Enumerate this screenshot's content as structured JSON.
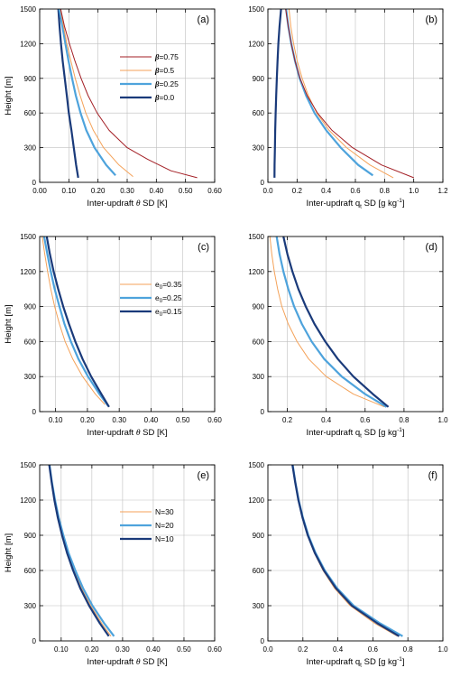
{
  "colors": {
    "orange": "#f4a259",
    "darkred": "#a31f25",
    "lightblue": "#4ea3dc",
    "darkblue": "#1a3a7a",
    "grid": "#bfbfbf"
  },
  "chart_data": [
    {
      "type": "line",
      "panel": "(a)",
      "xlabel_pre": "Inter-updraft",
      "xlabel_sym": "θ",
      "xlabel_post": "SD [K]",
      "ylabel": "Height [m]",
      "xlim": [
        0.0,
        0.6
      ],
      "ylim": [
        0,
        1500
      ],
      "xticks": [
        "0.00",
        "0.10",
        "0.20",
        "0.30",
        "0.40",
        "0.50",
        "0.60"
      ],
      "yticks": [
        "0",
        "300",
        "600",
        "900",
        "1200",
        "1500"
      ],
      "grid": true,
      "legend": [
        {
          "sym": "β",
          "rest": "=0.75",
          "color": "darkred",
          "width": 1
        },
        {
          "sym": "β",
          "rest": "=0.5",
          "color": "orange",
          "width": 1
        },
        {
          "sym": "β",
          "rest": "=0.25",
          "color": "lightblue",
          "width": 2
        },
        {
          "sym": "β",
          "rest": "=0.0",
          "color": "darkblue",
          "width": 2
        }
      ],
      "series": [
        {
          "color": "darkblue",
          "width": 2,
          "y": [
            40,
            150,
            300,
            450,
            600,
            750,
            900,
            1050,
            1200,
            1350,
            1500
          ],
          "x": [
            0.132,
            0.125,
            0.117,
            0.109,
            0.1,
            0.093,
            0.086,
            0.079,
            0.073,
            0.068,
            0.064
          ]
        },
        {
          "color": "lightblue",
          "width": 2,
          "y": [
            60,
            150,
            300,
            450,
            600,
            750,
            900,
            1050,
            1200,
            1350,
            1500
          ],
          "x": [
            0.26,
            0.228,
            0.188,
            0.16,
            0.14,
            0.124,
            0.111,
            0.099,
            0.088,
            0.078,
            0.067
          ]
        },
        {
          "color": "orange",
          "width": 1,
          "y": [
            50,
            150,
            300,
            450,
            600,
            750,
            900,
            1050,
            1200,
            1350,
            1500
          ],
          "x": [
            0.32,
            0.272,
            0.219,
            0.184,
            0.158,
            0.139,
            0.122,
            0.107,
            0.093,
            0.082,
            0.071
          ]
        },
        {
          "color": "darkred",
          "width": 1,
          "y": [
            40,
            100,
            200,
            300,
            450,
            600,
            750,
            900,
            1050,
            1200,
            1350,
            1500
          ],
          "x": [
            0.54,
            0.45,
            0.37,
            0.3,
            0.238,
            0.197,
            0.166,
            0.142,
            0.121,
            0.102,
            0.085,
            0.072
          ]
        }
      ]
    },
    {
      "type": "line",
      "panel": "(b)",
      "xlabel_pre": "Inter-updraft q",
      "xlabel_sub": "t",
      "xlabel_post": " SD [g kg",
      "xlabel_sup": "-1",
      "xlabel_end": "]",
      "xlim": [
        0.0,
        1.2
      ],
      "ylim": [
        0,
        1500
      ],
      "xticks": [
        "0.0",
        "0.2",
        "0.4",
        "0.6",
        "0.8",
        "1.0",
        "1.2"
      ],
      "yticks": [
        "0",
        "300",
        "600",
        "900",
        "1200",
        "1500"
      ],
      "grid": true,
      "series": [
        {
          "color": "darkblue",
          "width": 2,
          "y": [
            40,
            150,
            300,
            450,
            600,
            750,
            900,
            1050,
            1200,
            1350,
            1500
          ],
          "x": [
            0.045,
            0.046,
            0.048,
            0.05,
            0.053,
            0.057,
            0.061,
            0.066,
            0.072,
            0.08,
            0.09
          ]
        },
        {
          "color": "lightblue",
          "width": 2,
          "y": [
            60,
            150,
            300,
            450,
            600,
            750,
            900,
            1050,
            1200,
            1350,
            1500
          ],
          "x": [
            0.72,
            0.62,
            0.5,
            0.4,
            0.32,
            0.262,
            0.218,
            0.186,
            0.16,
            0.14,
            0.125
          ]
        },
        {
          "color": "orange",
          "width": 1,
          "y": [
            40,
            150,
            300,
            450,
            600,
            750,
            900,
            1050,
            1200,
            1350,
            1500
          ],
          "x": [
            0.86,
            0.7,
            0.54,
            0.42,
            0.335,
            0.278,
            0.235,
            0.201,
            0.176,
            0.157,
            0.145
          ]
        },
        {
          "color": "darkred",
          "width": 1,
          "y": [
            40,
            150,
            300,
            450,
            600,
            750,
            900,
            1050,
            1200,
            1350,
            1500
          ],
          "x": [
            1.0,
            0.78,
            0.58,
            0.44,
            0.34,
            0.27,
            0.22,
            0.186,
            0.16,
            0.14,
            0.122
          ]
        }
      ]
    },
    {
      "type": "line",
      "panel": "(c)",
      "xlabel_pre": "Inter-updraft",
      "xlabel_sym": "θ",
      "xlabel_post": "SD [K]",
      "ylabel": "Height [m]",
      "xlim": [
        0.05,
        0.6
      ],
      "ylim": [
        0,
        1500
      ],
      "xticks": [
        "0.10",
        "0.20",
        "0.30",
        "0.40",
        "0.50",
        "0.60"
      ],
      "xtickvals": [
        0.1,
        0.2,
        0.3,
        0.4,
        0.5,
        0.6
      ],
      "yticks": [
        "0",
        "300",
        "600",
        "900",
        "1200",
        "1500"
      ],
      "grid": true,
      "legend": [
        {
          "pre": "e",
          "sub": "0",
          "rest": "=0.35",
          "color": "orange",
          "width": 1
        },
        {
          "pre": "e",
          "sub": "0",
          "rest": "=0.25",
          "color": "lightblue",
          "width": 2
        },
        {
          "pre": "e",
          "sub": "0",
          "rest": "=0.15",
          "color": "darkblue",
          "width": 2
        }
      ],
      "series": [
        {
          "color": "orange",
          "width": 1,
          "y": [
            60,
            150,
            300,
            450,
            600,
            750,
            900,
            1050,
            1200,
            1350,
            1500
          ],
          "x": [
            0.255,
            0.225,
            0.185,
            0.154,
            0.13,
            0.112,
            0.097,
            0.085,
            0.075,
            0.066,
            0.058
          ]
        },
        {
          "color": "lightblue",
          "width": 2,
          "y": [
            50,
            150,
            300,
            450,
            600,
            750,
            900,
            1050,
            1200,
            1350,
            1500
          ],
          "x": [
            0.265,
            0.238,
            0.202,
            0.172,
            0.148,
            0.128,
            0.112,
            0.097,
            0.085,
            0.074,
            0.064
          ]
        },
        {
          "color": "darkblue",
          "width": 2,
          "y": [
            40,
            150,
            300,
            450,
            600,
            750,
            900,
            1050,
            1200,
            1350,
            1500
          ],
          "x": [
            0.268,
            0.244,
            0.212,
            0.185,
            0.162,
            0.142,
            0.124,
            0.108,
            0.094,
            0.082,
            0.072
          ]
        }
      ]
    },
    {
      "type": "line",
      "panel": "(d)",
      "xlabel_pre": "Inter-updraft q",
      "xlabel_sub": "t",
      "xlabel_post": " SD [g kg",
      "xlabel_sup": "-1",
      "xlabel_end": "]",
      "xlim": [
        0.1,
        1.0
      ],
      "ylim": [
        0,
        1500
      ],
      "xticks": [
        "0.2",
        "0.4",
        "0.6",
        "0.8",
        "1.0"
      ],
      "xtickvals": [
        0.2,
        0.4,
        0.6,
        0.8,
        1.0
      ],
      "yticks": [
        "0",
        "300",
        "600",
        "900",
        "1200",
        "1500"
      ],
      "grid": true,
      "series": [
        {
          "color": "orange",
          "width": 1,
          "y": [
            40,
            150,
            300,
            450,
            600,
            750,
            900,
            1050,
            1200,
            1350,
            1500
          ],
          "x": [
            0.7,
            0.54,
            0.4,
            0.31,
            0.25,
            0.205,
            0.172,
            0.15,
            0.133,
            0.12,
            0.11
          ]
        },
        {
          "color": "lightblue",
          "width": 2,
          "y": [
            40,
            150,
            300,
            450,
            600,
            750,
            900,
            1050,
            1200,
            1350,
            1500
          ],
          "x": [
            0.71,
            0.6,
            0.48,
            0.39,
            0.325,
            0.275,
            0.235,
            0.205,
            0.18,
            0.16,
            0.145
          ]
        },
        {
          "color": "darkblue",
          "width": 2,
          "y": [
            40,
            150,
            300,
            450,
            600,
            750,
            900,
            1050,
            1200,
            1350,
            1500
          ],
          "x": [
            0.72,
            0.64,
            0.54,
            0.46,
            0.395,
            0.34,
            0.295,
            0.257,
            0.226,
            0.2,
            0.18
          ]
        }
      ]
    },
    {
      "type": "line",
      "panel": "(e)",
      "xlabel_pre": "Inter-updraft",
      "xlabel_sym": "θ",
      "xlabel_post": "SD [K]",
      "ylabel": "Height [m]",
      "xlim": [
        0.03,
        0.6
      ],
      "ylim": [
        0,
        1500
      ],
      "xticks": [
        "0.10",
        "0.20",
        "0.30",
        "0.40",
        "0.50",
        "0.60"
      ],
      "xtickvals": [
        0.1,
        0.2,
        0.3,
        0.4,
        0.5,
        0.6
      ],
      "yticks": [
        "0",
        "300",
        "600",
        "900",
        "1200",
        "1500"
      ],
      "grid": true,
      "legend": [
        {
          "pre": "N=30",
          "color": "orange",
          "width": 1
        },
        {
          "pre": "N=20",
          "color": "lightblue",
          "width": 2
        },
        {
          "pre": "N=10",
          "color": "darkblue",
          "width": 2
        }
      ],
      "series": [
        {
          "color": "orange",
          "width": 1,
          "y": [
            40,
            150,
            300,
            450,
            600,
            750,
            900,
            1050,
            1200,
            1350,
            1500
          ],
          "x": [
            0.262,
            0.232,
            0.196,
            0.166,
            0.142,
            0.121,
            0.104,
            0.09,
            0.079,
            0.07,
            0.062
          ]
        },
        {
          "color": "lightblue",
          "width": 2,
          "y": [
            40,
            150,
            300,
            450,
            600,
            750,
            900,
            1050,
            1200,
            1350,
            1500
          ],
          "x": [
            0.272,
            0.24,
            0.202,
            0.171,
            0.146,
            0.124,
            0.107,
            0.092,
            0.08,
            0.07,
            0.062
          ]
        },
        {
          "color": "darkblue",
          "width": 2,
          "y": [
            40,
            150,
            300,
            450,
            600,
            750,
            900,
            1050,
            1200,
            1350,
            1500
          ],
          "x": [
            0.255,
            0.226,
            0.191,
            0.162,
            0.139,
            0.119,
            0.103,
            0.089,
            0.078,
            0.069,
            0.061
          ]
        }
      ]
    },
    {
      "type": "line",
      "panel": "(f)",
      "xlabel_pre": "Inter-updraft q",
      "xlabel_sub": "t",
      "xlabel_post": " SD [g kg",
      "xlabel_sup": "-1",
      "xlabel_end": "]",
      "xlim": [
        0.0,
        1.0
      ],
      "ylim": [
        0,
        1500
      ],
      "xticks": [
        "0.0",
        "0.2",
        "0.4",
        "0.6",
        "0.8",
        "1.0"
      ],
      "yticks": [
        "0",
        "300",
        "600",
        "900",
        "1200",
        "1500"
      ],
      "grid": true,
      "series": [
        {
          "color": "orange",
          "width": 1,
          "y": [
            40,
            150,
            300,
            450,
            600,
            750,
            900,
            1050,
            1200,
            1350,
            1500
          ],
          "x": [
            0.74,
            0.61,
            0.47,
            0.38,
            0.315,
            0.265,
            0.226,
            0.196,
            0.173,
            0.155,
            0.14
          ]
        },
        {
          "color": "lightblue",
          "width": 2,
          "y": [
            40,
            150,
            300,
            450,
            600,
            750,
            900,
            1050,
            1200,
            1350,
            1500
          ],
          "x": [
            0.77,
            0.64,
            0.49,
            0.395,
            0.325,
            0.272,
            0.231,
            0.2,
            0.176,
            0.157,
            0.142
          ]
        },
        {
          "color": "darkblue",
          "width": 2,
          "y": [
            40,
            150,
            300,
            450,
            600,
            750,
            900,
            1050,
            1200,
            1350,
            1500
          ],
          "x": [
            0.75,
            0.625,
            0.48,
            0.388,
            0.32,
            0.268,
            0.228,
            0.198,
            0.174,
            0.156,
            0.14
          ]
        }
      ]
    }
  ]
}
